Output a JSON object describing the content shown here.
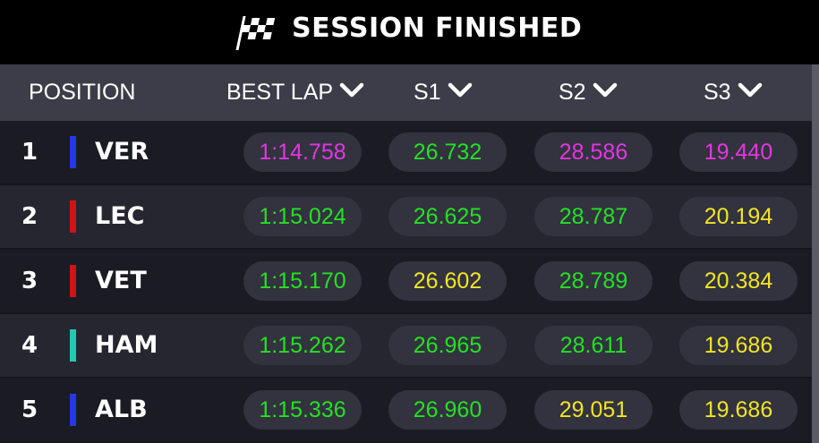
{
  "header": {
    "title": "SESSION FINISHED"
  },
  "table": {
    "columns": [
      "POSITION",
      "BEST LAP",
      "S1",
      "S2",
      "S3"
    ],
    "rows": [
      {
        "position": "1",
        "driver": "VER",
        "team_color": "#2438e8",
        "times": [
          {
            "text": "1:14.758",
            "color": "#e236e2"
          },
          {
            "text": "26.732",
            "color": "#25e025"
          },
          {
            "text": "28.586",
            "color": "#e236e2"
          },
          {
            "text": "19.440",
            "color": "#e236e2"
          }
        ]
      },
      {
        "position": "2",
        "driver": "LEC",
        "team_color": "#d01414",
        "times": [
          {
            "text": "1:15.024",
            "color": "#25e025"
          },
          {
            "text": "26.625",
            "color": "#25e025"
          },
          {
            "text": "28.787",
            "color": "#25e025"
          },
          {
            "text": "20.194",
            "color": "#f2e426"
          }
        ]
      },
      {
        "position": "3",
        "driver": "VET",
        "team_color": "#d01414",
        "times": [
          {
            "text": "1:15.170",
            "color": "#25e025"
          },
          {
            "text": "26.602",
            "color": "#f2e426"
          },
          {
            "text": "28.789",
            "color": "#25e025"
          },
          {
            "text": "20.384",
            "color": "#f2e426"
          }
        ]
      },
      {
        "position": "4",
        "driver": "HAM",
        "team_color": "#24c8b4",
        "times": [
          {
            "text": "1:15.262",
            "color": "#25e025"
          },
          {
            "text": "26.965",
            "color": "#25e025"
          },
          {
            "text": "28.611",
            "color": "#25e025"
          },
          {
            "text": "19.686",
            "color": "#f2e426"
          }
        ]
      },
      {
        "position": "5",
        "driver": "ALB",
        "team_color": "#2438e8",
        "times": [
          {
            "text": "1:15.336",
            "color": "#25e025"
          },
          {
            "text": "26.960",
            "color": "#25e025"
          },
          {
            "text": "29.051",
            "color": "#f2e426"
          },
          {
            "text": "19.686",
            "color": "#f2e426"
          }
        ]
      }
    ]
  }
}
